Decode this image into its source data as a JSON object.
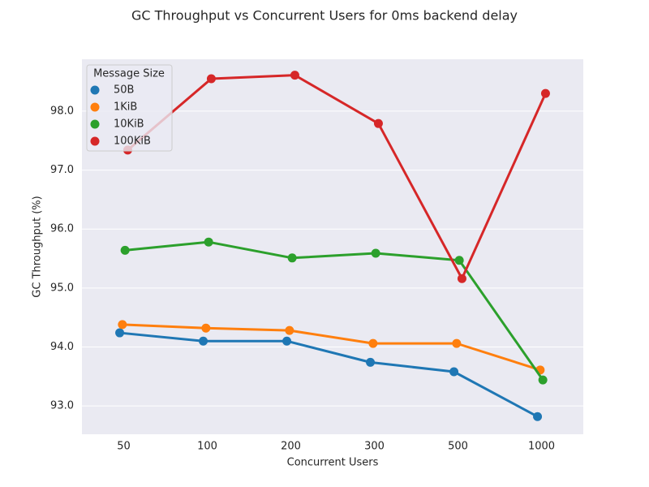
{
  "chart_data": {
    "type": "line",
    "title": "GC Throughput vs Concurrent Users for 0ms backend delay",
    "x_label": "Concurrent Users",
    "y_label": "GC Throughput (%)",
    "categories": [
      "50",
      "100",
      "200",
      "300",
      "500",
      "1000"
    ],
    "legend_title": "Message Size",
    "legend": "upper left",
    "grid": true,
    "ylim": [
      92.52,
      98.88
    ],
    "yticks": [
      {
        "value": 93,
        "label": "93.0"
      },
      {
        "value": 94,
        "label": "94.0"
      },
      {
        "value": 95,
        "label": "95.0"
      },
      {
        "value": 96,
        "label": "96.0"
      },
      {
        "value": 97,
        "label": "97.0"
      },
      {
        "value": 98,
        "label": "98.0"
      }
    ],
    "series": [
      {
        "name": "50B",
        "color": "#1f77b4",
        "values": [
          94.24,
          94.1,
          94.1,
          93.74,
          93.58,
          92.82
        ]
      },
      {
        "name": "1KiB",
        "color": "#ff7f0e",
        "values": [
          94.38,
          94.32,
          94.28,
          94.06,
          94.06,
          93.61
        ]
      },
      {
        "name": "10KiB",
        "color": "#2ca02c",
        "values": [
          95.64,
          95.78,
          95.51,
          95.59,
          95.47,
          93.44
        ]
      },
      {
        "name": "100KiB",
        "color": "#d62728",
        "values": [
          97.34,
          98.55,
          98.61,
          97.79,
          95.16,
          98.3
        ]
      }
    ]
  }
}
